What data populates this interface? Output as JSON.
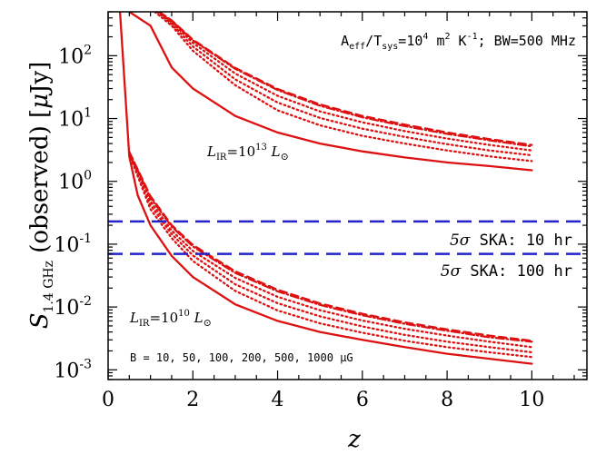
{
  "chart_data": {
    "type": "line",
    "xlabel": "z",
    "ylabel": "S_{1.4 GHz} (observed) [μJy]",
    "xlim": [
      0,
      11.3
    ],
    "ylim": [
      0.0007,
      500
    ],
    "yscale": "log",
    "x_ticks": [
      "0",
      "2",
      "4",
      "6",
      "8",
      "10"
    ],
    "y_ticks": [
      {
        "base": "10",
        "exp": "-3"
      },
      {
        "base": "10",
        "exp": "-2"
      },
      {
        "base": "10",
        "exp": "-1"
      },
      {
        "base": "10",
        "exp": "0"
      },
      {
        "base": "10",
        "exp": "1"
      },
      {
        "base": "10",
        "exp": "2"
      }
    ],
    "top_annotation": {
      "lead": "A",
      "lead_sub": "eff",
      "mid": "/T",
      "mid_sub": "sys",
      "eq": "=10",
      "eq_exp": "4",
      "unit": " m",
      "unit_exp": "2",
      "unit2": " K",
      "unit2_exp": "-1",
      "tail": "; BW=500 MHz"
    },
    "label_high": {
      "L": "L",
      "sub": "IR",
      "eq": "=10",
      "exp": "13",
      "unit": " L",
      "unit_sub": "⊙"
    },
    "label_low": {
      "L": "L",
      "sub": "IR",
      "eq": "=10",
      "exp": "10",
      "unit": " L",
      "unit_sub": "⊙"
    },
    "b_label": "B = 10, 50, 100, 200, 500, 1000 μG",
    "hlines": [
      {
        "label_sigma": "5σ",
        "label": " SKA: 10 hr",
        "y": 0.23,
        "color": "#2222cc"
      },
      {
        "label_sigma": "5σ",
        "label": " SKA: 100 hr",
        "y": 0.07,
        "color": "#2222cc"
      }
    ],
    "series_color": "#dd1111",
    "groups": [
      {
        "lum": "1e13",
        "series": [
          {
            "style": "solid",
            "x": [
              0.5,
              1.0,
              1.5,
              2.0,
              3.0,
              4.0,
              5.0,
              6.0,
              7.0,
              8.0,
              9.0,
              10.0
            ],
            "y": [
              500,
              300,
              65,
              30,
              11,
              6.0,
              4.0,
              3.0,
              2.4,
              2.0,
              1.75,
              1.5
            ]
          },
          {
            "style": "dotted",
            "x": [
              1.1,
              1.5,
              2.0,
              3.0,
              4.0,
              5.0,
              6.0,
              7.0,
              8.0,
              9.0,
              10.0
            ],
            "y": [
              500,
              300,
              120,
              34,
              13.5,
              7.8,
              5.3,
              4.0,
              3.1,
              2.5,
              2.1
            ]
          },
          {
            "style": "dotted",
            "x": [
              1.15,
              1.5,
              2.0,
              3.0,
              4.0,
              5.0,
              6.0,
              7.0,
              8.0,
              9.0,
              10.0
            ],
            "y": [
              500,
              320,
              140,
              42,
              18,
              10.2,
              6.9,
              5.1,
              3.9,
              3.1,
              2.6
            ]
          },
          {
            "style": "dotted",
            "x": [
              1.2,
              1.5,
              2.0,
              3.0,
              4.0,
              5.0,
              6.0,
              7.0,
              8.0,
              9.0,
              10.0
            ],
            "y": [
              500,
              340,
              160,
              52,
              23,
              13.0,
              8.7,
              6.3,
              4.8,
              3.8,
              3.1
            ]
          },
          {
            "style": "dashdot",
            "x": [
              1.2,
              1.5,
              2.0,
              3.0,
              4.0,
              5.0,
              6.0,
              7.0,
              8.0,
              9.0,
              10.0
            ],
            "y": [
              500,
              360,
              175,
              62,
              28.5,
              16.0,
              10.5,
              7.6,
              5.7,
              4.5,
              3.6
            ]
          },
          {
            "style": "dashed",
            "x": [
              1.2,
              1.5,
              2.0,
              3.0,
              4.0,
              5.0,
              6.0,
              7.0,
              8.0,
              9.0,
              10.0
            ],
            "y": [
              500,
              365,
              180,
              64,
              29.5,
              16.8,
              11.0,
              8.0,
              6.0,
              4.7,
              3.8
            ]
          }
        ]
      },
      {
        "lum": "1e10",
        "series": [
          {
            "style": "solid",
            "x": [
              0.28,
              0.5,
              0.7,
              1.0,
              1.5,
              2.0,
              3.0,
              4.0,
              5.0,
              6.0,
              7.0,
              8.0,
              9.0,
              10.0
            ],
            "y": [
              500,
              2.5,
              0.6,
              0.2,
              0.065,
              0.03,
              0.011,
              0.006,
              0.004,
              0.003,
              0.0023,
              0.0018,
              0.0015,
              0.00125
            ]
          },
          {
            "style": "dotted",
            "x": [
              0.5,
              1.0,
              1.5,
              2.0,
              3.0,
              4.0,
              5.0,
              6.0,
              7.0,
              8.0,
              9.0,
              10.0
            ],
            "y": [
              2.7,
              0.36,
              0.125,
              0.054,
              0.018,
              0.0088,
              0.0055,
              0.0039,
              0.0029,
              0.0023,
              0.0019,
              0.0016
            ]
          },
          {
            "style": "dotted",
            "x": [
              0.5,
              1.0,
              1.5,
              2.0,
              3.0,
              4.0,
              5.0,
              6.0,
              7.0,
              8.0,
              9.0,
              10.0
            ],
            "y": [
              2.8,
              0.42,
              0.145,
              0.066,
              0.023,
              0.0115,
              0.0071,
              0.0049,
              0.0036,
              0.0028,
              0.0023,
              0.0019
            ]
          },
          {
            "style": "dotted",
            "x": [
              0.5,
              1.0,
              1.5,
              2.0,
              3.0,
              4.0,
              5.0,
              6.0,
              7.0,
              8.0,
              9.0,
              10.0
            ],
            "y": [
              2.85,
              0.48,
              0.165,
              0.078,
              0.029,
              0.0145,
              0.0089,
              0.0061,
              0.0045,
              0.0035,
              0.0028,
              0.0023
            ]
          },
          {
            "style": "dashdot",
            "x": [
              0.5,
              1.0,
              1.5,
              2.0,
              3.0,
              4.0,
              5.0,
              6.0,
              7.0,
              8.0,
              9.0,
              10.0
            ],
            "y": [
              2.9,
              0.55,
              0.19,
              0.092,
              0.035,
              0.0178,
              0.0108,
              0.0074,
              0.0054,
              0.0042,
              0.0033,
              0.0028
            ]
          },
          {
            "style": "dashed",
            "x": [
              0.5,
              1.0,
              1.5,
              2.0,
              3.0,
              4.0,
              5.0,
              6.0,
              7.0,
              8.0,
              9.0,
              10.0
            ],
            "y": [
              2.95,
              0.58,
              0.2,
              0.097,
              0.037,
              0.0188,
              0.0114,
              0.0078,
              0.0057,
              0.0044,
              0.0035,
              0.0029
            ]
          }
        ]
      }
    ]
  }
}
